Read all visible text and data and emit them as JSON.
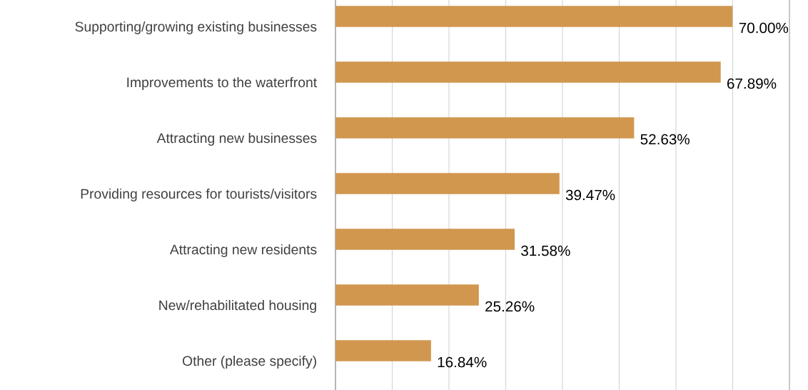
{
  "chart_data": {
    "type": "bar",
    "orientation": "horizontal",
    "categories": [
      "Supporting/growing existing businesses",
      "Improvements to the waterfront",
      "Attracting new businesses",
      "Providing resources for tourists/visitors",
      "Attracting new residents",
      "New/rehabilitated housing",
      "Other (please specify)"
    ],
    "values": [
      70.0,
      67.89,
      52.63,
      39.47,
      31.58,
      25.26,
      16.84
    ],
    "value_labels": [
      "70.00%",
      "67.89%",
      "52.63%",
      "39.47%",
      "31.58%",
      "25.26%",
      "16.84%"
    ],
    "color": "#d1974f",
    "xlim": [
      0,
      80
    ],
    "xticks": [
      {
        "value": 0,
        "label": null
      },
      {
        "value": 10,
        "label": null
      },
      {
        "value": 20,
        "label": null
      },
      {
        "value": 30,
        "label": null
      },
      {
        "value": 40,
        "label": null
      },
      {
        "value": 50,
        "label": null
      },
      {
        "value": 60,
        "label": null
      },
      {
        "value": 70,
        "label": null
      },
      {
        "value": 80,
        "label": null
      }
    ],
    "tick_labels": "y",
    "grid": "x"
  }
}
